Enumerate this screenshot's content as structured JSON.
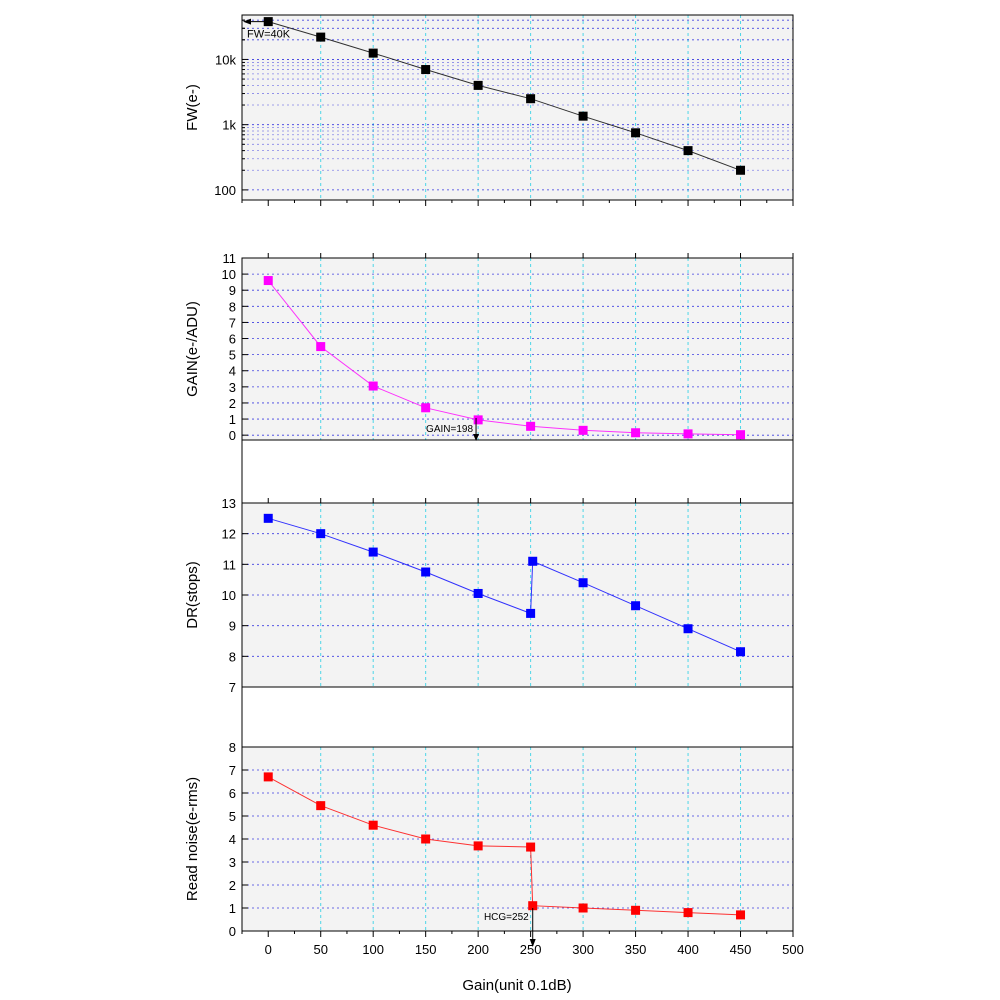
{
  "chart_data": [
    {
      "type": "line",
      "scale": "log",
      "ylabel": "FW(e-)",
      "ylim": [
        70,
        48000
      ],
      "yticks": [
        100,
        1000,
        10000
      ],
      "ytick_labels": [
        "100",
        "1k",
        "10k"
      ],
      "x": [
        0,
        50,
        100,
        150,
        200,
        250,
        300,
        350,
        400,
        450
      ],
      "series": [
        {
          "name": "FW",
          "color": "#000000",
          "values": [
            38000,
            22000,
            12500,
            7000,
            4000,
            2500,
            1350,
            750,
            400,
            200
          ]
        }
      ],
      "annotation": {
        "text": "FW=40K",
        "x": 0,
        "y": 38000
      }
    },
    {
      "type": "line",
      "scale": "linear",
      "ylabel": "GAIN(e-/ADU)",
      "ylim": [
        -0.3,
        11
      ],
      "yticks": [
        0,
        1,
        2,
        3,
        4,
        5,
        6,
        7,
        8,
        9,
        10,
        11
      ],
      "ytick_labels": [
        "0",
        "1",
        "2",
        "3",
        "4",
        "5",
        "6",
        "7",
        "8",
        "9",
        "10",
        "11"
      ],
      "x": [
        0,
        50,
        100,
        150,
        200,
        250,
        300,
        350,
        400,
        450
      ],
      "series": [
        {
          "name": "GAIN",
          "color": "#ff00ff",
          "values": [
            9.6,
            5.5,
            3.05,
            1.7,
            0.95,
            0.55,
            0.3,
            0.15,
            0.08,
            0.03
          ]
        }
      ],
      "annotation": {
        "text": "GAIN=198",
        "x": 198,
        "y": 0
      }
    },
    {
      "type": "line",
      "scale": "linear",
      "ylabel": "DR(stops)",
      "ylim": [
        7,
        13
      ],
      "yticks": [
        7,
        8,
        9,
        10,
        11,
        12,
        13
      ],
      "ytick_labels": [
        "7",
        "8",
        "9",
        "10",
        "11",
        "12",
        "13"
      ],
      "x": [
        0,
        50,
        100,
        150,
        200,
        250,
        252,
        300,
        350,
        400,
        450
      ],
      "series": [
        {
          "name": "DR",
          "color": "#0000ff",
          "values": [
            12.5,
            12.0,
            11.4,
            10.75,
            10.05,
            9.4,
            11.1,
            10.4,
            9.65,
            8.9,
            8.15
          ]
        }
      ]
    },
    {
      "type": "line",
      "scale": "linear",
      "ylabel": "Read noise(e-rms)",
      "ylim": [
        0,
        8
      ],
      "yticks": [
        0,
        1,
        2,
        3,
        4,
        5,
        6,
        7,
        8
      ],
      "ytick_labels": [
        "0",
        "1",
        "2",
        "3",
        "4",
        "5",
        "6",
        "7",
        "8"
      ],
      "x": [
        0,
        50,
        100,
        150,
        200,
        250,
        252,
        300,
        350,
        400,
        450
      ],
      "series": [
        {
          "name": "Read noise",
          "color": "#ff0000",
          "values": [
            6.7,
            5.45,
            4.6,
            4.0,
            3.7,
            3.65,
            1.1,
            1.0,
            0.9,
            0.8,
            0.7
          ]
        }
      ],
      "annotation": {
        "text": "HCG=252",
        "x": 252,
        "y": 0
      }
    }
  ],
  "xaxis": {
    "label": "Gain(unit 0.1dB)",
    "xlim": [
      -25,
      500
    ],
    "ticks": [
      0,
      50,
      100,
      150,
      200,
      250,
      300,
      350,
      400,
      450,
      500
    ],
    "tick_labels": [
      "0",
      "50",
      "100",
      "150",
      "200",
      "250",
      "300",
      "350",
      "400",
      "450",
      "500"
    ]
  }
}
